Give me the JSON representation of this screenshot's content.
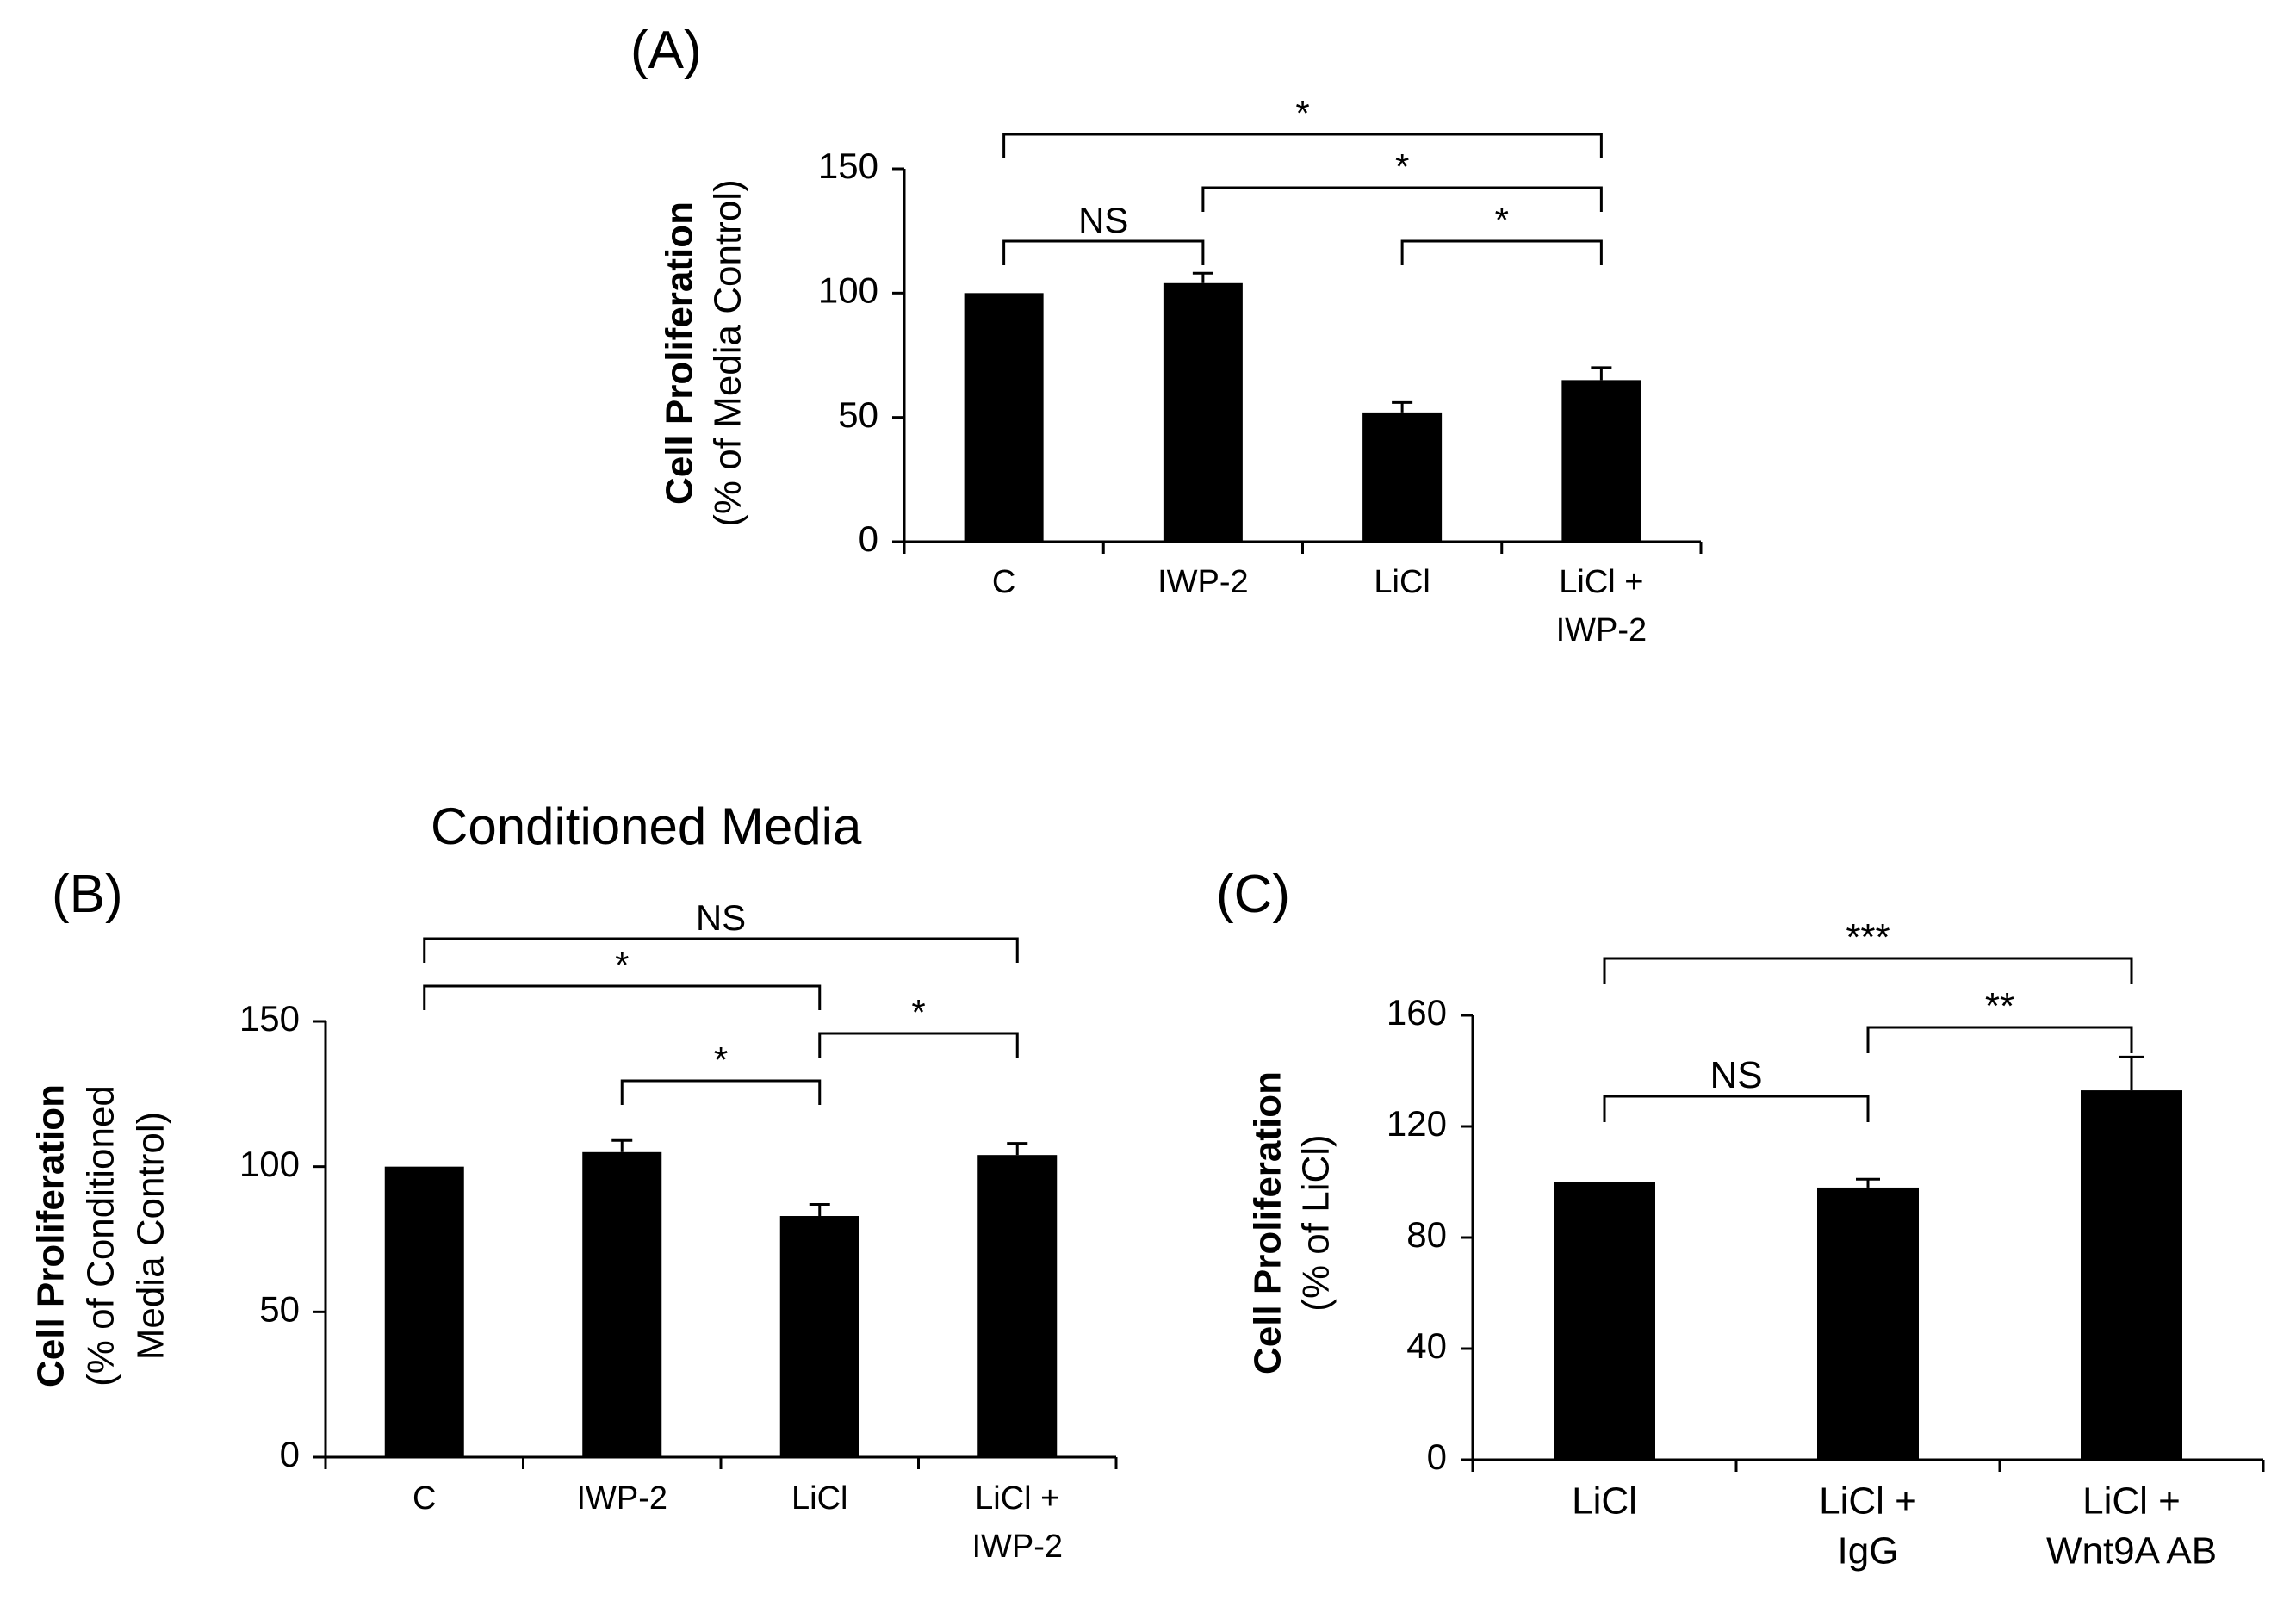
{
  "figure": {
    "conditioned_media_title": "Conditioned Media"
  },
  "chart_data": [
    {
      "panel": "(A)",
      "type": "bar",
      "categories": [
        [
          "C"
        ],
        [
          "IWP-2"
        ],
        [
          "LiCl"
        ],
        [
          "LiCl +",
          "IWP-2"
        ]
      ],
      "values": [
        100,
        104,
        52,
        65
      ],
      "errors": [
        0,
        4,
        4,
        5
      ],
      "ylim": [
        0,
        150
      ],
      "yticks": [
        0,
        50,
        100,
        150
      ],
      "ylabel_bold": "Cell Proliferation",
      "ylabel_sub": [
        "(% of Media Control)"
      ],
      "significance": [
        {
          "from": 0,
          "to": 1,
          "label": "NS"
        },
        {
          "from": 1,
          "to": 3,
          "label": "*"
        },
        {
          "from": 0,
          "to": 3,
          "label": "*"
        },
        {
          "from": 2,
          "to": 3,
          "label": "*"
        }
      ]
    },
    {
      "panel": "(B)",
      "type": "bar",
      "categories": [
        [
          "C"
        ],
        [
          "IWP-2"
        ],
        [
          "LiCl"
        ],
        [
          "LiCl +",
          "IWP-2"
        ]
      ],
      "values": [
        100,
        105,
        83,
        104
      ],
      "errors": [
        0,
        4,
        4,
        4
      ],
      "ylim": [
        0,
        150
      ],
      "yticks": [
        0,
        50,
        100,
        150
      ],
      "ylabel_bold": "Cell Proliferation",
      "ylabel_sub": [
        "(% of Conditioned",
        "Media Control)"
      ],
      "significance": [
        {
          "from": 0,
          "to": 3,
          "label": "NS"
        },
        {
          "from": 0,
          "to": 2,
          "label": "*"
        },
        {
          "from": 1,
          "to": 2,
          "label": "*"
        },
        {
          "from": 2,
          "to": 3,
          "label": "*"
        }
      ]
    },
    {
      "panel": "(C)",
      "type": "bar",
      "categories": [
        [
          "LiCl"
        ],
        [
          "LiCl +",
          "IgG"
        ],
        [
          "LiCl +",
          "Wnt9A AB"
        ]
      ],
      "values": [
        100,
        98,
        133
      ],
      "errors": [
        0,
        3,
        12
      ],
      "ylim": [
        0,
        160
      ],
      "yticks": [
        0,
        40,
        80,
        120,
        160
      ],
      "ylabel_bold": "Cell Proliferation",
      "ylabel_sub": [
        "(% of LiCl)"
      ],
      "significance": [
        {
          "from": 0,
          "to": 1,
          "label": "NS"
        },
        {
          "from": 1,
          "to": 2,
          "label": "**"
        },
        {
          "from": 0,
          "to": 2,
          "label": "***"
        }
      ]
    }
  ]
}
